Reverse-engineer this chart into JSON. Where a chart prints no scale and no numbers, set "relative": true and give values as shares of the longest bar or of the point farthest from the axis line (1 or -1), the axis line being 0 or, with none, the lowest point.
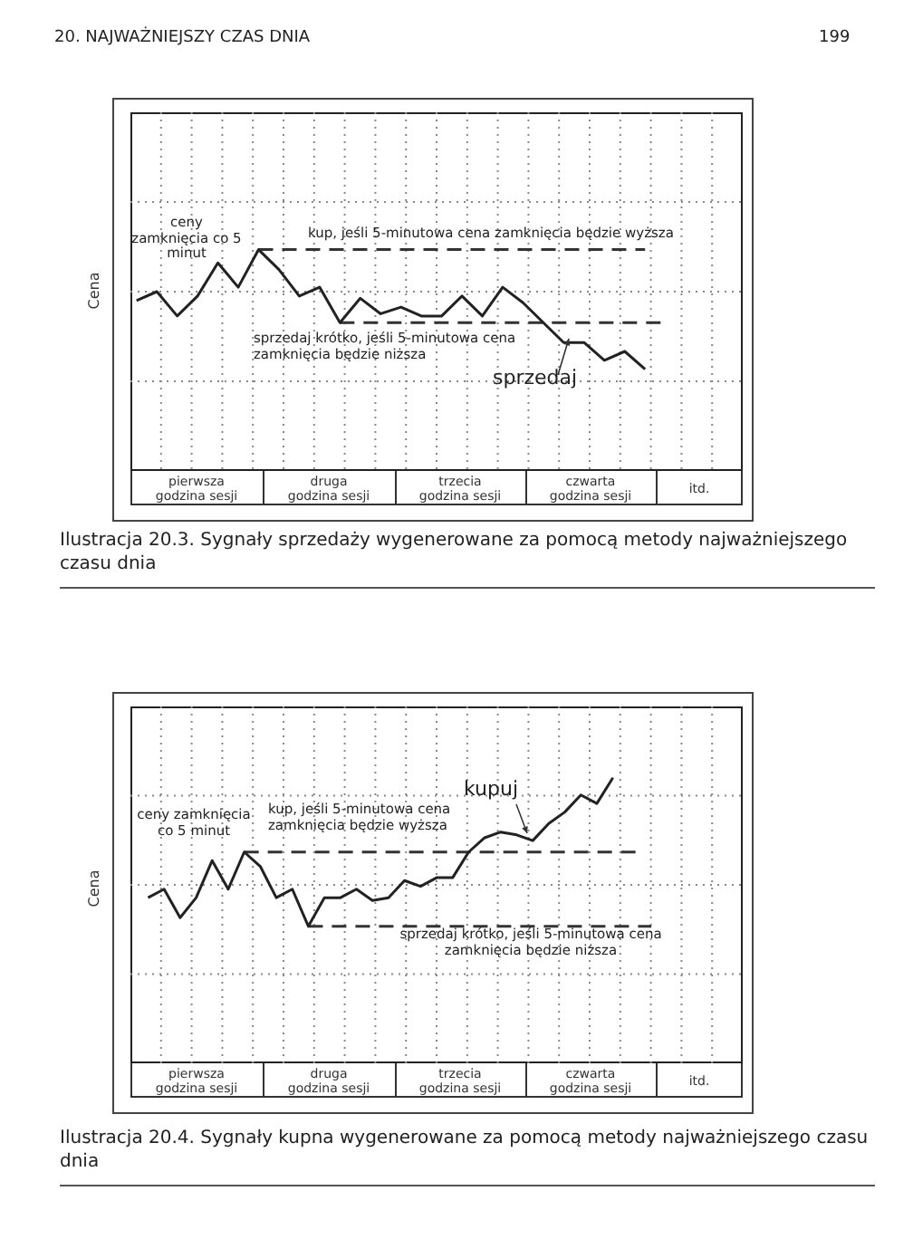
{
  "chart_data": [
    {
      "type": "line",
      "title": "Ilustracja 20.3. Sygnały sprzedaży wygenerowane za pomocą metody najważniejszego czasu dnia",
      "ylabel": "Cena",
      "relative": true,
      "grid": true,
      "categories": [
        null,
        null,
        null,
        null,
        null,
        null,
        null,
        null,
        null,
        null,
        null,
        null,
        null,
        null,
        null,
        null,
        null,
        null,
        null,
        null,
        null,
        null,
        null,
        null,
        null,
        null
      ],
      "series": [
        {
          "color": "#222222",
          "values": [
            0.77,
            0.81,
            0.7,
            0.79,
            0.94,
            0.83,
            1,
            0.91,
            0.79,
            0.83,
            0.67,
            0.78,
            0.71,
            0.74,
            0.7,
            0.7,
            0.79,
            0.7,
            0.83,
            0.76,
            0.67,
            0.58,
            0.58,
            0.5,
            0.54,
            0.46
          ]
        }
      ],
      "ref_lines": [
        {
          "axis": "y",
          "value": 1,
          "color": "#333333",
          "line_style": "dashed"
        },
        {
          "axis": "y",
          "value": 0.67,
          "color": "#333333",
          "line_style": "dashed"
        }
      ],
      "annotations": [
        "20. NAJWAŻNIEJSZY CZAS DNIA",
        "199",
        "ceny zamknięcia co 5 minut",
        "kup, jeśli 5-minutowa cena zamknięcia będzie wyższa",
        "sprzedaj krótko, jeśli 5-minutowa cena zamknięcia będzie niższa",
        "sprzedaj",
        "pierwsza godzina sesji",
        "druga godzina sesji",
        "trzecia godzina sesji",
        "czwarta godzina sesji",
        "itd."
      ]
    },
    {
      "type": "line",
      "title": "Ilustracja 20.4. Sygnały kupna wygenerowane za pomocą metody najważniejszego czasu dnia",
      "ylabel": "Cena",
      "relative": true,
      "grid": true,
      "categories": [
        null,
        null,
        null,
        null,
        null,
        null,
        null,
        null,
        null,
        null,
        null,
        null,
        null,
        null,
        null,
        null,
        null,
        null,
        null,
        null,
        null,
        null,
        null,
        null,
        null,
        null,
        null,
        null,
        null,
        null
      ],
      "series": [
        {
          "color": "#222222",
          "values": [
            0.58,
            0.61,
            0.51,
            0.58,
            0.71,
            0.61,
            0.74,
            0.69,
            0.58,
            0.61,
            0.48,
            0.58,
            0.58,
            0.61,
            0.57,
            0.58,
            0.64,
            0.62,
            0.65,
            0.65,
            0.74,
            0.79,
            0.81,
            0.8,
            0.78,
            0.84,
            0.88,
            0.94,
            0.91,
            1
          ]
        }
      ],
      "ref_lines": [
        {
          "axis": "y",
          "value": 0.74,
          "color": "#333333",
          "line_style": "dashed"
        },
        {
          "axis": "y",
          "value": 0.48,
          "color": "#333333",
          "line_style": "dashed"
        }
      ],
      "annotations": [
        "ceny zamknięcia co 5 minut",
        "kup, jeśli 5-minutowa cena zamknięcia będzie wyższa",
        "sprzedaj krótko, jeśli 5-minutowa cena zamknięcia będzie niższa",
        "kupuj",
        "pierwsza godzina sesji",
        "druga godzina sesji",
        "trzecia godzina sesji",
        "czwarta godzina sesji",
        "itd."
      ]
    }
  ]
}
